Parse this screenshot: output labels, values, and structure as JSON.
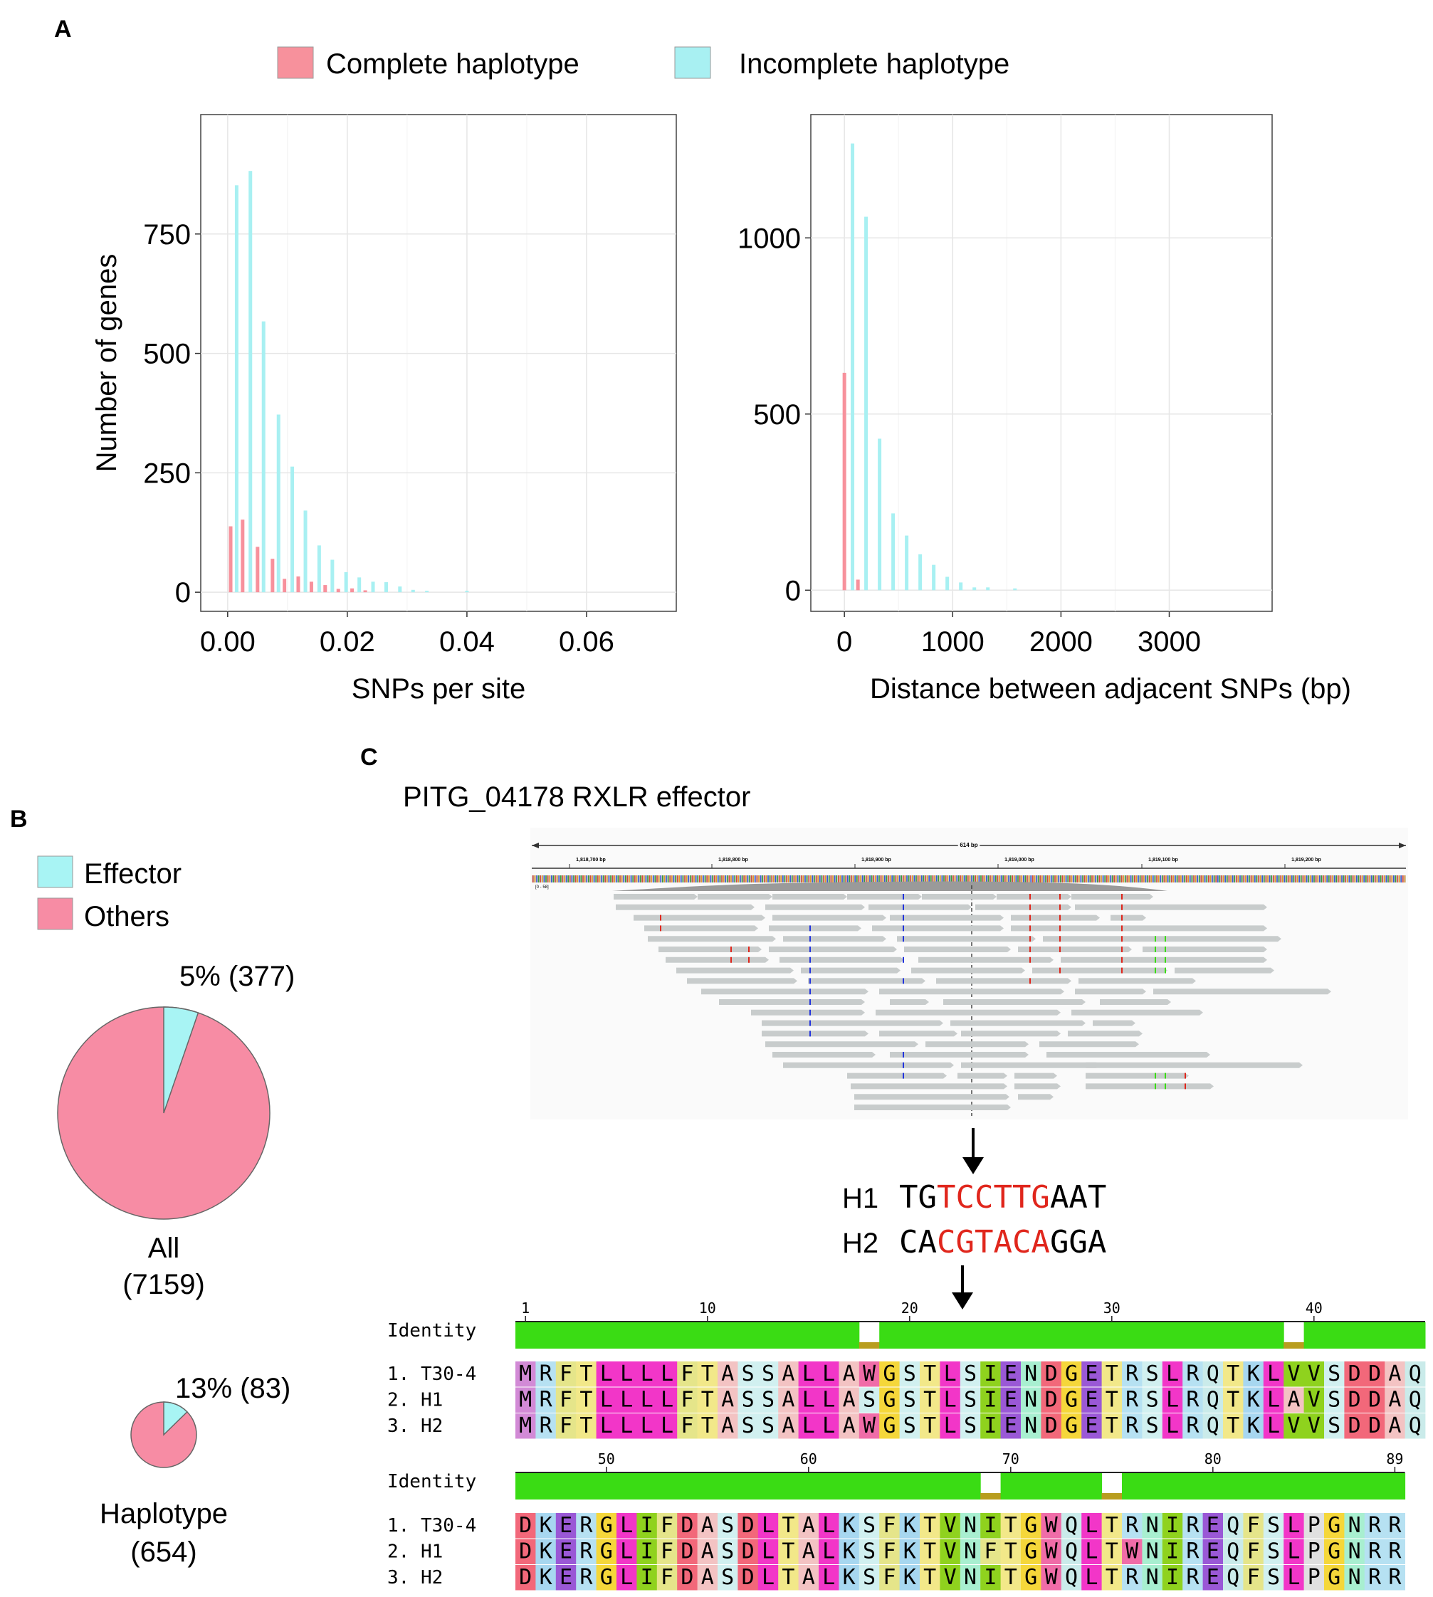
{
  "colors": {
    "complete": "#F7919C",
    "incomplete": "#A8F0F2",
    "incomplete_bar": "#9EE9DC",
    "pie_others": "#F78CA4",
    "pie_effector": "#A8F4F4",
    "identity": "#3ADC14",
    "identity_gap": "#B89D1E",
    "snp_red": "#E0261C",
    "read_gray": "#C8CCCC"
  },
  "panel_labels": {
    "a": "A",
    "b": "B",
    "c": "C"
  },
  "legend_a": {
    "complete": "Complete haplotype",
    "incomplete": "Incomplete haplotype"
  },
  "chart_data": [
    {
      "type": "bar",
      "id": "snps-per-site",
      "title": "",
      "xlabel": "SNPs per site",
      "ylabel": "Number of genes",
      "xlim": [
        -0.0045,
        0.075
      ],
      "ylim": [
        -40,
        1000
      ],
      "xticks": [
        0,
        0.02,
        0.04,
        0.06
      ],
      "xtick_labels": [
        "0.00",
        "0.02",
        "0.04",
        "0.06"
      ],
      "yticks": [
        0,
        250,
        500,
        750
      ],
      "ytick_labels": [
        "0",
        "250",
        "500",
        "750"
      ],
      "series": [
        {
          "name": "Complete haplotype",
          "color": "#F7919C",
          "x": [
            0.0005,
            0.0025,
            0.005,
            0.0075,
            0.0095,
            0.0118,
            0.014,
            0.0163,
            0.0185,
            0.0208,
            0.023
          ],
          "values": [
            138,
            152,
            95,
            70,
            28,
            33,
            22,
            15,
            7,
            8,
            4
          ]
        },
        {
          "name": "Incomplete haplotype",
          "color": "#A8F0F2",
          "x": [
            0.0015,
            0.0038,
            0.006,
            0.0085,
            0.0108,
            0.013,
            0.0153,
            0.0175,
            0.0198,
            0.022,
            0.0243,
            0.0265,
            0.0288,
            0.031,
            0.0333,
            0.04
          ],
          "values": [
            852,
            882,
            567,
            372,
            263,
            171,
            98,
            68,
            42,
            31,
            22,
            21,
            12,
            5,
            3,
            3
          ]
        }
      ]
    },
    {
      "type": "bar",
      "id": "distance-adjacent-snps",
      "title": "",
      "xlabel": "Distance between adjacent SNPs (bp)",
      "ylabel": "",
      "xlim": [
        -310,
        3950
      ],
      "ylim": [
        -60,
        1350
      ],
      "xticks": [
        0,
        1000,
        2000,
        3000
      ],
      "xtick_labels": [
        "0",
        "1000",
        "2000",
        "3000"
      ],
      "yticks": [
        0,
        500,
        1000
      ],
      "ytick_labels": [
        "0",
        "500",
        "1000"
      ],
      "series": [
        {
          "name": "Complete haplotype",
          "color": "#F7919C",
          "x": [
            0,
            125
          ],
          "values": [
            617,
            30
          ]
        },
        {
          "name": "Incomplete haplotype",
          "color": "#A8F0F2",
          "x": [
            75,
            200,
            325,
            450,
            575,
            700,
            825,
            950,
            1075,
            1200,
            1325,
            1575
          ],
          "values": [
            1268,
            1060,
            430,
            218,
            155,
            102,
            72,
            38,
            22,
            8,
            8,
            5
          ]
        }
      ]
    },
    {
      "type": "pie",
      "id": "pie-all",
      "labels": [
        "Effector",
        "Others"
      ],
      "values": [
        377,
        6782
      ],
      "slice_label": "5% (377)",
      "caption_line1": "All",
      "caption_line2": "(7159)"
    },
    {
      "type": "pie",
      "id": "pie-haplotype",
      "labels": [
        "Effector",
        "Others"
      ],
      "values": [
        83,
        571
      ],
      "slice_label": "13% (83)",
      "caption_line1": "Haplotype",
      "caption_line2": "(654)"
    }
  ],
  "legend_b": {
    "effector": "Effector",
    "others": "Others"
  },
  "panel_c": {
    "title": "PITG_04178 RXLR effector",
    "igv_span": "614 bp",
    "igv_coords": [
      "1,818,700 bp",
      "1,818,800 bp",
      "1,818,900 bp",
      "1,819,000 bp",
      "1,819,100 bp",
      "1,819,200 bp"
    ],
    "igv_range": "[0 - 58]",
    "h1": {
      "label": "H1",
      "prefix": "TG",
      "snp": "TCCTTG",
      "suffix": "AAT"
    },
    "h2": {
      "label": "H2",
      "prefix": "CA",
      "snp": "CGTACA",
      "suffix": "GGA"
    },
    "identity_label": "Identity",
    "block1": {
      "ticks": [
        {
          "label": "1",
          "pos": 1
        },
        {
          "label": "10",
          "pos": 10
        },
        {
          "label": "20",
          "pos": 20
        },
        {
          "label": "30",
          "pos": 30
        },
        {
          "label": "40",
          "pos": 40
        }
      ],
      "gaps": [
        18,
        39
      ],
      "rows": [
        {
          "name": "1. T30-4",
          "seq": "MRFTLLLLFTASSALLAWGSTLSIENDGETRSLRQTKLVVSDDAQ"
        },
        {
          "name": "2. H1",
          "seq": "MRFTLLLLFTASSALLASGSTLSIENDGETRSLRQTKLAVSDDAQ"
        },
        {
          "name": "3. H2",
          "seq": "MRFTLLLLFTASSALLAWGSTLSIENDGETRSLRQTKLVVSDDAQ"
        }
      ]
    },
    "block2": {
      "ticks": [
        {
          "label": "50",
          "pos": 50
        },
        {
          "label": "60",
          "pos": 60
        },
        {
          "label": "70",
          "pos": 70
        },
        {
          "label": "80",
          "pos": 80
        },
        {
          "label": "89",
          "pos": 89
        }
      ],
      "gaps": [
        69,
        75
      ],
      "rows": [
        {
          "name": "1. T30-4",
          "seq": "DKERGLIFDASDLTALKSFKTVNITGWQLTRNIREQFSLPGNRR"
        },
        {
          "name": "2. H1",
          "seq": "DKERGLIFDASDLTALKSFKTVNFTGWQLTWNIREQFSLPGNRR"
        },
        {
          "name": "3. H2",
          "seq": "DKERGLIFDASDLTALKSFKTVNITGWQLTRNIREQFSLPGNRR"
        }
      ]
    }
  }
}
